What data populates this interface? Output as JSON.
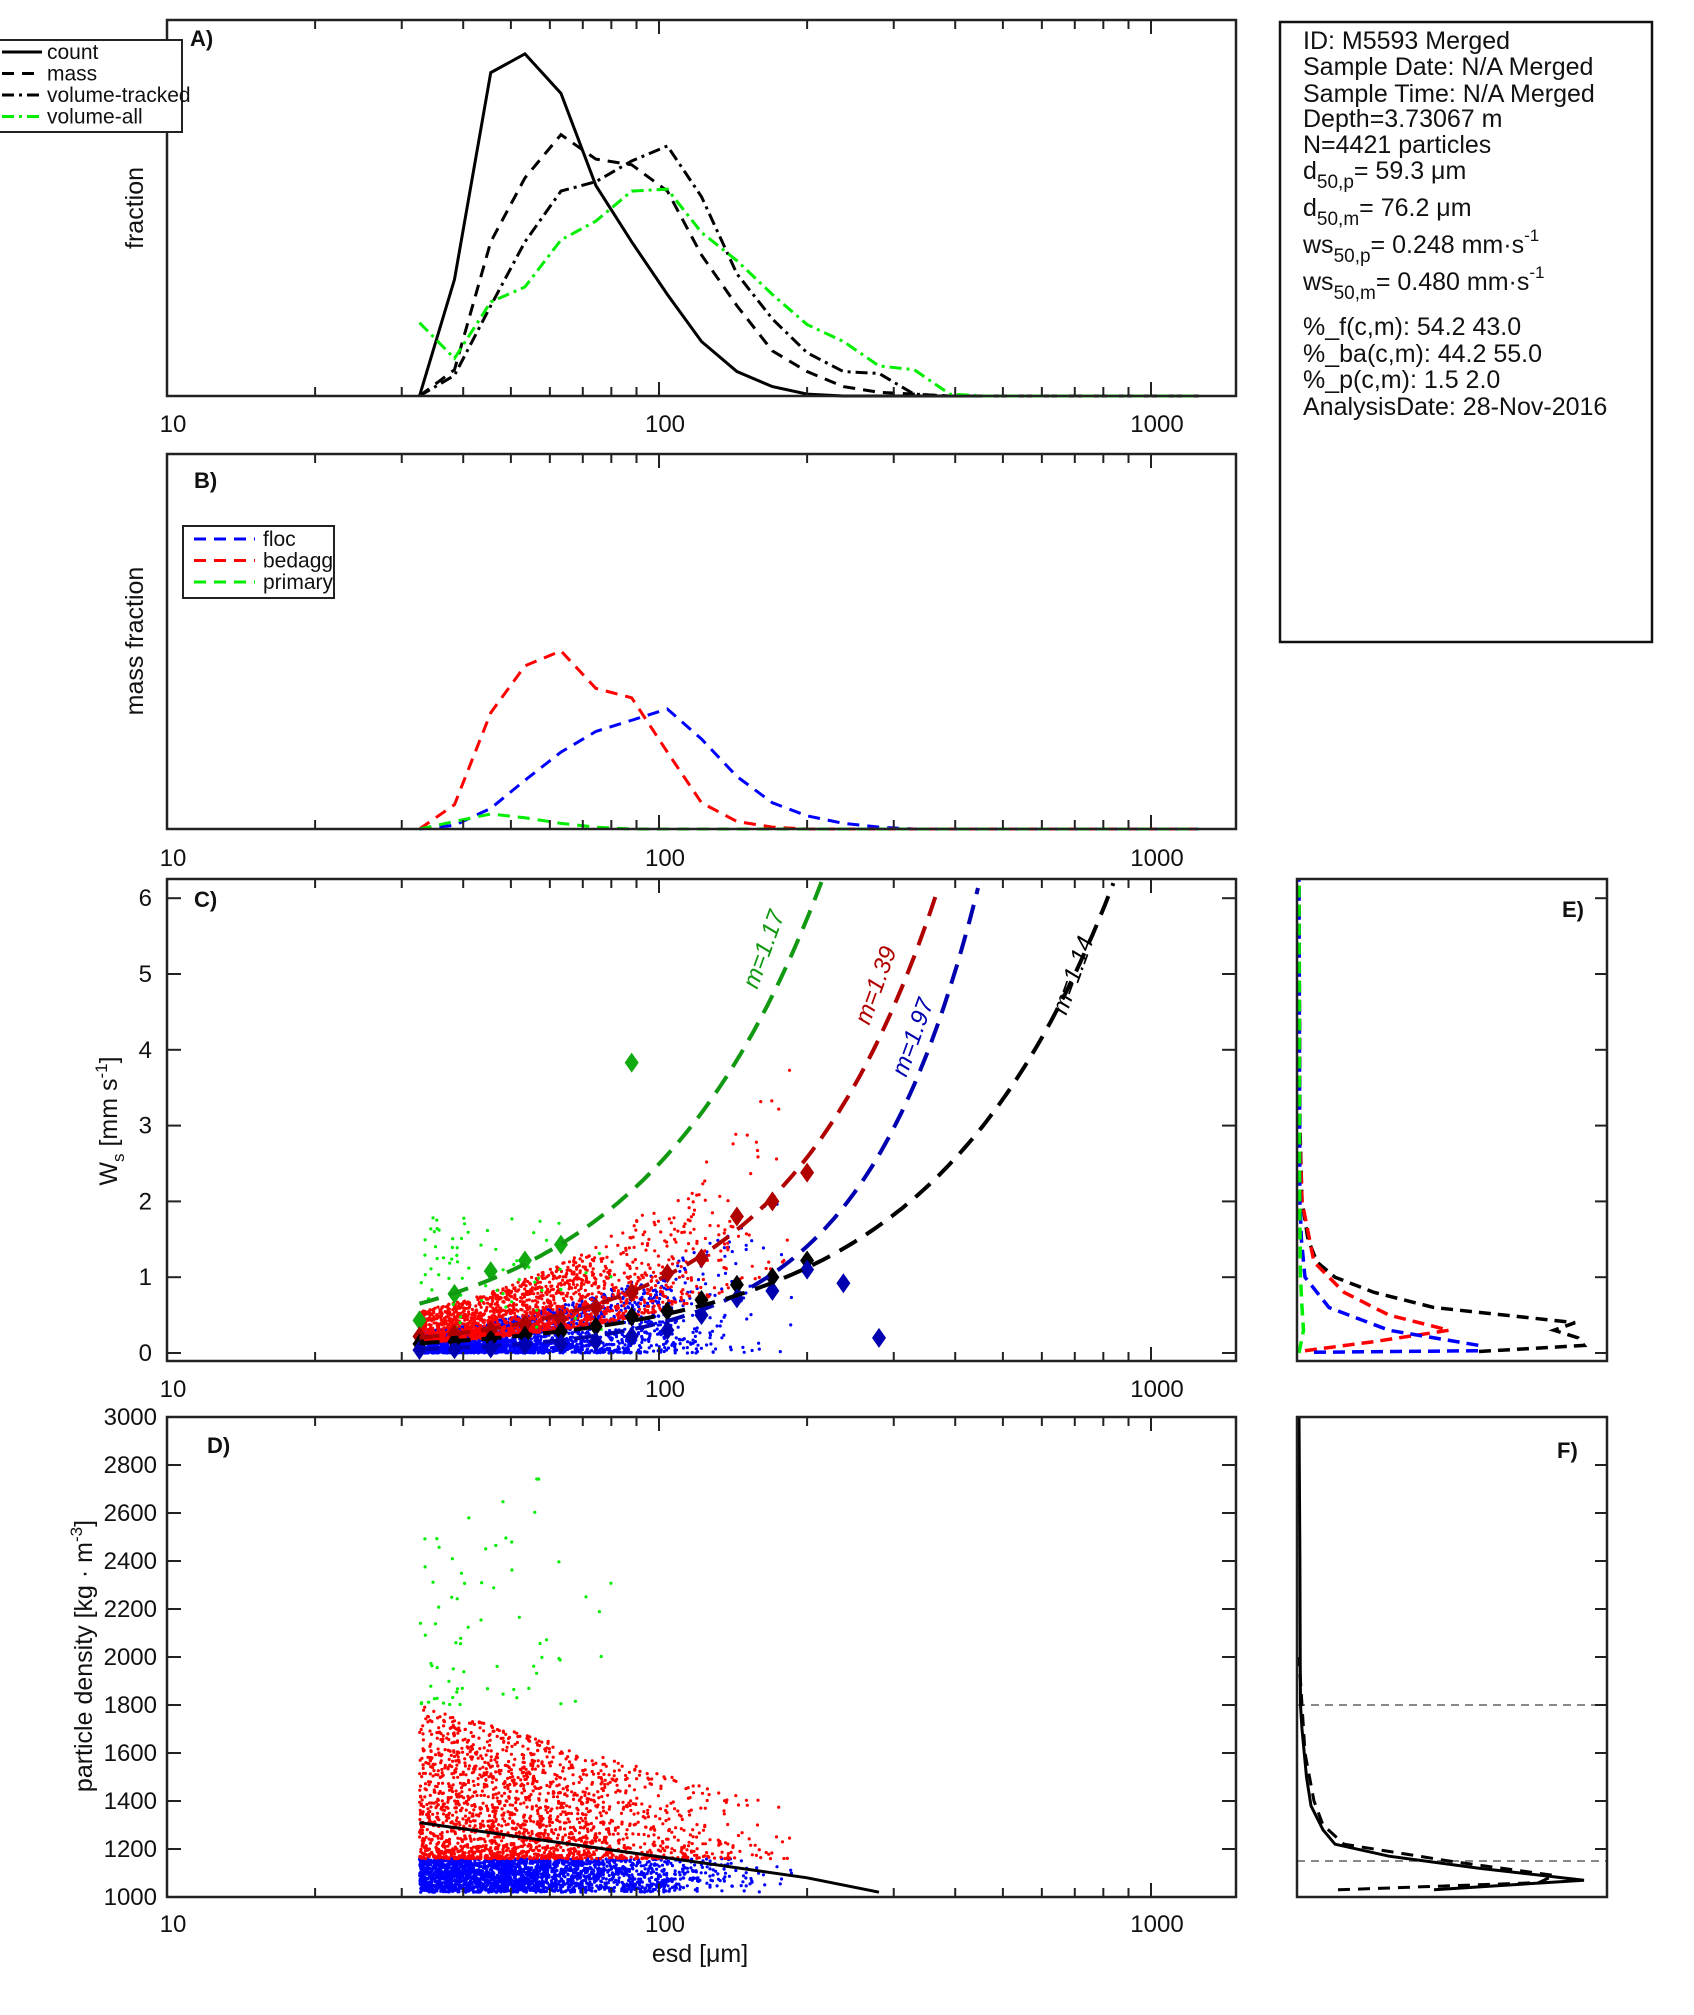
{
  "info_box": {
    "lines": [
      {
        "main": "ID: M5593 Merged"
      },
      {
        "main": "Sample Date: N/A Merged"
      },
      {
        "main": "Sample Time: N/A Merged"
      },
      {
        "main": "Depth=3.73067 m"
      },
      {
        "main": "N=4421 particles"
      },
      {
        "main": "d",
        "sub": "50,p",
        "rest": "=  59.3 μm"
      },
      {
        "main": "d",
        "sub": "50,m",
        "rest": "=  76.2 μm"
      },
      {
        "main": "ws",
        "sub": "50,p",
        "rest": "= 0.248 mm·s",
        "sup": "-1"
      },
      {
        "main": "ws",
        "sub": "50,m",
        "rest": "= 0.480 mm·s",
        "sup": "-1"
      },
      {
        "main": "%_f(c,m): 54.2 43.0"
      },
      {
        "main": "%_ba(c,m): 44.2 55.0"
      },
      {
        "main": "%_p(c,m): 1.5 2.0"
      },
      {
        "main": "AnalysisDate: 28-Nov-2016"
      }
    ]
  },
  "xlabel": "esd [μm]",
  "x_ticks": [
    "10",
    "100",
    "1000"
  ],
  "chart_data": [
    {
      "panel": "A)",
      "type": "line",
      "xscale": "log",
      "xlim": [
        10,
        1480
      ],
      "ylim": [
        0,
        0.2
      ],
      "ylabel": "fraction",
      "legend_position": "top-left",
      "x": [
        32.6,
        38.4,
        45.5,
        53.4,
        63.2,
        74.4,
        88,
        104,
        122,
        144,
        170,
        200,
        237,
        280,
        330,
        390,
        460,
        545,
        640,
        760,
        900,
        1060,
        1250
      ],
      "series": [
        {
          "name": "count",
          "color": "#000000",
          "style": "solid",
          "values": [
            0,
            0.062,
            0.172,
            0.182,
            0.161,
            0.112,
            0.082,
            0.054,
            0.029,
            0.013,
            0.005,
            0.001,
            0,
            0,
            0,
            0,
            0,
            0,
            0,
            0,
            0,
            0,
            0
          ]
        },
        {
          "name": "mass",
          "color": "#000000",
          "style": "dashed",
          "values": [
            0,
            0.014,
            0.082,
            0.116,
            0.139,
            0.126,
            0.123,
            0.109,
            0.075,
            0.048,
            0.024,
            0.013,
            0.005,
            0.002,
            0.001,
            0,
            0,
            0,
            0,
            0,
            0,
            0,
            0
          ]
        },
        {
          "name": "volume-tracked",
          "color": "#000000",
          "style": "dashdot",
          "values": [
            0,
            0.011,
            0.048,
            0.082,
            0.109,
            0.114,
            0.125,
            0.133,
            0.106,
            0.065,
            0.041,
            0.023,
            0.013,
            0.012,
            0.001,
            0,
            0,
            0,
            0,
            0,
            0,
            0,
            0
          ]
        },
        {
          "name": "volume-all",
          "color": "#00ee00",
          "style": "dashdot",
          "values": [
            0.039,
            0.02,
            0.05,
            0.058,
            0.083,
            0.093,
            0.109,
            0.11,
            0.087,
            0.072,
            0.054,
            0.038,
            0.029,
            0.016,
            0.014,
            0.001,
            0,
            0,
            0,
            0,
            0,
            0,
            0
          ]
        }
      ]
    },
    {
      "panel": "B)",
      "type": "line",
      "xscale": "log",
      "xlim": [
        10,
        1480
      ],
      "ylim": [
        0,
        0.2
      ],
      "ylabel": "mass fraction",
      "legend_position": "top-left",
      "x": [
        32.6,
        38.4,
        45.5,
        53.4,
        63.2,
        74.4,
        88,
        104,
        122,
        144,
        170,
        200,
        237,
        280,
        330,
        390,
        460,
        545,
        640,
        760,
        900,
        1060,
        1250
      ],
      "series": [
        {
          "name": "floc",
          "color": "#0000ff",
          "style": "dashed",
          "values": [
            0,
            0.002,
            0.011,
            0.026,
            0.041,
            0.052,
            0.058,
            0.064,
            0.048,
            0.028,
            0.014,
            0.007,
            0.003,
            0.001,
            0,
            0,
            0,
            0,
            0,
            0,
            0,
            0,
            0
          ]
        },
        {
          "name": "bedagg",
          "color": "#ff0000",
          "style": "dashed",
          "values": [
            0,
            0.013,
            0.062,
            0.087,
            0.095,
            0.075,
            0.07,
            0.041,
            0.014,
            0.004,
            0.001,
            0,
            0,
            0,
            0,
            0,
            0,
            0,
            0,
            0,
            0,
            0,
            0
          ]
        },
        {
          "name": "primary",
          "color": "#00ee00",
          "style": "dashed",
          "values": [
            0,
            0.004,
            0.008,
            0.006,
            0.003,
            0.001,
            0,
            0,
            0,
            0,
            0,
            0,
            0,
            0,
            0,
            0,
            0,
            0,
            0,
            0,
            0,
            0,
            0
          ]
        }
      ]
    },
    {
      "panel": "C)",
      "type": "scatter",
      "xscale": "log",
      "xlim": [
        10,
        1480
      ],
      "ylim": [
        -0.1,
        6.25
      ],
      "ylabel": "W",
      "ylabel_sub": "s",
      "ylabel_rest": " [mm s",
      "ylabel_sup": "-1",
      "ylabel_end": "]",
      "y_ticks": [
        "0",
        "1",
        "2",
        "3",
        "4",
        "5",
        "6"
      ],
      "scatter_classes": [
        {
          "name": "floc",
          "color": "#0000ff",
          "count": 2396,
          "d_max": 290
        },
        {
          "name": "bedagg",
          "color": "#ff0000",
          "count": 1954,
          "d_max": 230
        },
        {
          "name": "primary",
          "color": "#00ee00",
          "count": 71,
          "d_max": 90
        }
      ],
      "fits": [
        {
          "name": "primary-fit",
          "label": "m=1.17",
          "color": "#119911",
          "k": 0.65,
          "p": 1.2,
          "d_end": 215
        },
        {
          "name": "bedagg-fit",
          "label": "m=1.39",
          "color": "#b00000",
          "k": 0.2,
          "p": 1.41,
          "d_end": 370
        },
        {
          "name": "floc-fit",
          "label": "m=1.97",
          "color": "#0000b0",
          "k": 0.05,
          "p": 1.84,
          "d_end": 450
        },
        {
          "name": "all-fit",
          "label": "m=1.14",
          "color": "#000000",
          "k": 0.13,
          "p": 1.19,
          "d_end": 850
        }
      ],
      "binned_means": [
        {
          "name": "primary",
          "color": "#11aa11",
          "points": [
            [
              32.6,
              0.43
            ],
            [
              38.4,
              0.78
            ],
            [
              45.5,
              1.08
            ],
            [
              53.4,
              1.22
            ],
            [
              63.2,
              1.43
            ],
            [
              88,
              3.83
            ]
          ]
        },
        {
          "name": "bedagg",
          "color": "#b00000",
          "points": [
            [
              32.6,
              0.22
            ],
            [
              38.4,
              0.25
            ],
            [
              45.5,
              0.3
            ],
            [
              53.4,
              0.38
            ],
            [
              63.2,
              0.45
            ],
            [
              74.4,
              0.6
            ],
            [
              88,
              0.8
            ],
            [
              104,
              1.05
            ],
            [
              122,
              1.25
            ],
            [
              144,
              1.8
            ],
            [
              170,
              2.0
            ],
            [
              200,
              2.38
            ]
          ]
        },
        {
          "name": "all",
          "color": "#000000",
          "points": [
            [
              32.6,
              0.12
            ],
            [
              38.4,
              0.15
            ],
            [
              45.5,
              0.18
            ],
            [
              53.4,
              0.23
            ],
            [
              63.2,
              0.28
            ],
            [
              74.4,
              0.35
            ],
            [
              88,
              0.48
            ],
            [
              104,
              0.55
            ],
            [
              122,
              0.7
            ],
            [
              144,
              0.9
            ],
            [
              170,
              1.0
            ],
            [
              200,
              1.22
            ]
          ]
        },
        {
          "name": "floc",
          "color": "#0000b0",
          "points": [
            [
              32.6,
              0.04
            ],
            [
              38.4,
              0.05
            ],
            [
              45.5,
              0.06
            ],
            [
              53.4,
              0.1
            ],
            [
              63.2,
              0.12
            ],
            [
              74.4,
              0.15
            ],
            [
              88,
              0.22
            ],
            [
              104,
              0.3
            ],
            [
              122,
              0.5
            ],
            [
              144,
              0.72
            ],
            [
              170,
              0.82
            ],
            [
              200,
              1.1
            ],
            [
              237,
              0.92
            ],
            [
              280,
              0.2
            ]
          ]
        }
      ]
    },
    {
      "panel": "D)",
      "type": "scatter",
      "xscale": "log",
      "xlim": [
        10,
        1480
      ],
      "ylim": [
        1000,
        3000
      ],
      "ylabel": "particle density [kg · m",
      "ylabel_sup": "-3",
      "ylabel_end": "]",
      "y_ticks": [
        "1000",
        "1200",
        "1400",
        "1600",
        "1800",
        "2000",
        "2200",
        "2400",
        "2600",
        "2800",
        "3000"
      ],
      "trend_line": [
        [
          32.6,
          1310
        ],
        [
          200,
          1080
        ],
        [
          280,
          1020
        ]
      ]
    },
    {
      "panel": "E)",
      "type": "line",
      "orientation": "vertical",
      "ylim": [
        -0.1,
        6.25
      ],
      "xlim": [
        0,
        1
      ],
      "series": [
        {
          "name": "all",
          "color": "#000000",
          "ws": [
            0.02,
            0.1,
            0.2,
            0.3,
            0.4,
            0.6,
            0.8,
            1.0,
            1.2,
            1.5,
            2,
            3,
            6.25
          ],
          "values": [
            0.6,
            0.95,
            0.93,
            0.85,
            0.92,
            0.45,
            0.25,
            0.12,
            0.06,
            0.03,
            0.01,
            0.003,
            0
          ]
        },
        {
          "name": "bedagg",
          "color": "#ff0000",
          "ws": [
            0.03,
            0.15,
            0.3,
            0.5,
            0.8,
            1.2,
            2,
            3,
            6.25
          ],
          "values": [
            0.02,
            0.25,
            0.5,
            0.3,
            0.15,
            0.05,
            0.01,
            0.002,
            0
          ]
        },
        {
          "name": "floc",
          "color": "#0000ff",
          "ws": [
            0.01,
            0.03,
            0.1,
            0.3,
            0.6,
            1.0,
            1.5,
            2,
            6.25
          ],
          "values": [
            0.05,
            0.6,
            0.6,
            0.3,
            0.1,
            0.02,
            0.008,
            0.003,
            0
          ]
        },
        {
          "name": "primary",
          "color": "#00ee00",
          "ws": [
            0.0,
            0.3,
            0.6,
            1.0,
            2.0,
            6.25
          ],
          "values": [
            0,
            0.015,
            0.01,
            0.005,
            0.002,
            0
          ]
        }
      ]
    },
    {
      "panel": "F)",
      "type": "line",
      "orientation": "vertical",
      "ylim": [
        1000,
        3000
      ],
      "xlim": [
        0,
        1
      ],
      "ref_lines": [
        1150,
        1800
      ],
      "series": [
        {
          "name": "count",
          "color": "#000000",
          "style": "solid",
          "density": [
            1030,
            1070,
            1120,
            1170,
            1220,
            1280,
            1380,
            1500,
            1700,
            1800,
            2000,
            2400,
            3000
          ],
          "values": [
            0.45,
            0.95,
            0.6,
            0.3,
            0.12,
            0.08,
            0.04,
            0.025,
            0.01,
            0.005,
            0.004,
            0.003,
            0
          ]
        },
        {
          "name": "mass",
          "color": "#000000",
          "style": "dashed",
          "density": [
            1030,
            1060,
            1090,
            1150,
            1220,
            1300,
            1400,
            1600,
            1800,
            2000
          ],
          "values": [
            0.13,
            0.8,
            0.85,
            0.5,
            0.15,
            0.08,
            0.05,
            0.02,
            0.01,
            0
          ]
        }
      ]
    }
  ]
}
